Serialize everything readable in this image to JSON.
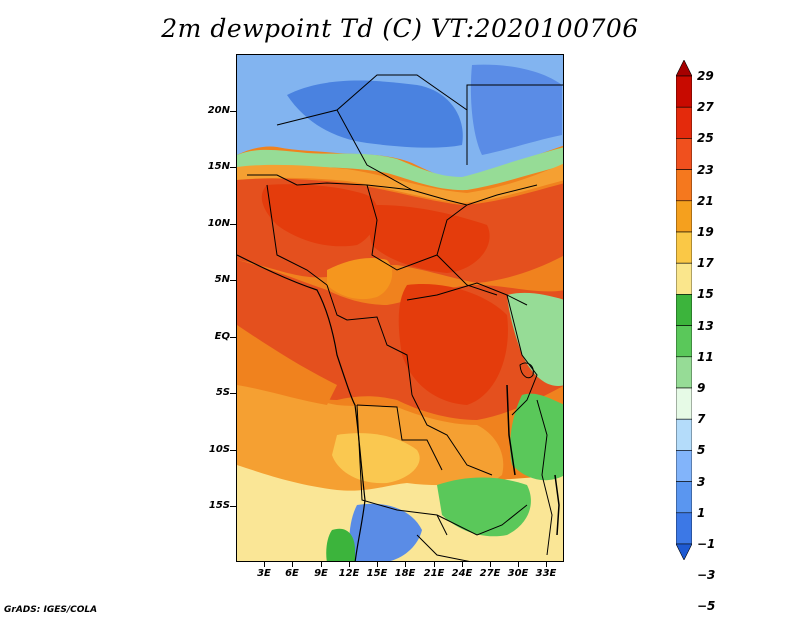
{
  "title": "2m dewpoint Td (C) VT:2020100706",
  "footer": "GrADS: IGES/COLA",
  "map": {
    "lat_labels": [
      "20N",
      "15N",
      "10N",
      "5N",
      "EQ",
      "5S",
      "10S",
      "15S"
    ],
    "lon_labels": [
      "3E",
      "6E",
      "9E",
      "12E",
      "15E",
      "18E",
      "21E",
      "24E",
      "27E",
      "30E",
      "33E"
    ]
  },
  "colorbar": {
    "labels": [
      "29",
      "27",
      "25",
      "23",
      "21",
      "19",
      "17",
      "15",
      "13",
      "11",
      "9",
      "7",
      "5",
      "3",
      "1",
      "−1",
      "−3",
      "−5"
    ],
    "colors": [
      "#a50000",
      "#c80a00",
      "#e42a0c",
      "#f0501e",
      "#f5781e",
      "#f5a01e",
      "#fac846",
      "#fae68c",
      "#3cb43c",
      "#5ac85a",
      "#96dc96",
      "#e6fae6",
      "#b4dcfa",
      "#82b4fa",
      "#5a96f0",
      "#3c78e6",
      "#1e5ad2"
    ]
  },
  "colors": {
    "ocean_blue": "#82b4f0",
    "sahara_blue": "#5a8ce6",
    "deep_red": "#e43c0c",
    "orange": "#f0821e",
    "light_orange": "#f5b43c",
    "pale_yellow": "#fae696",
    "green": "#5ac85a"
  }
}
